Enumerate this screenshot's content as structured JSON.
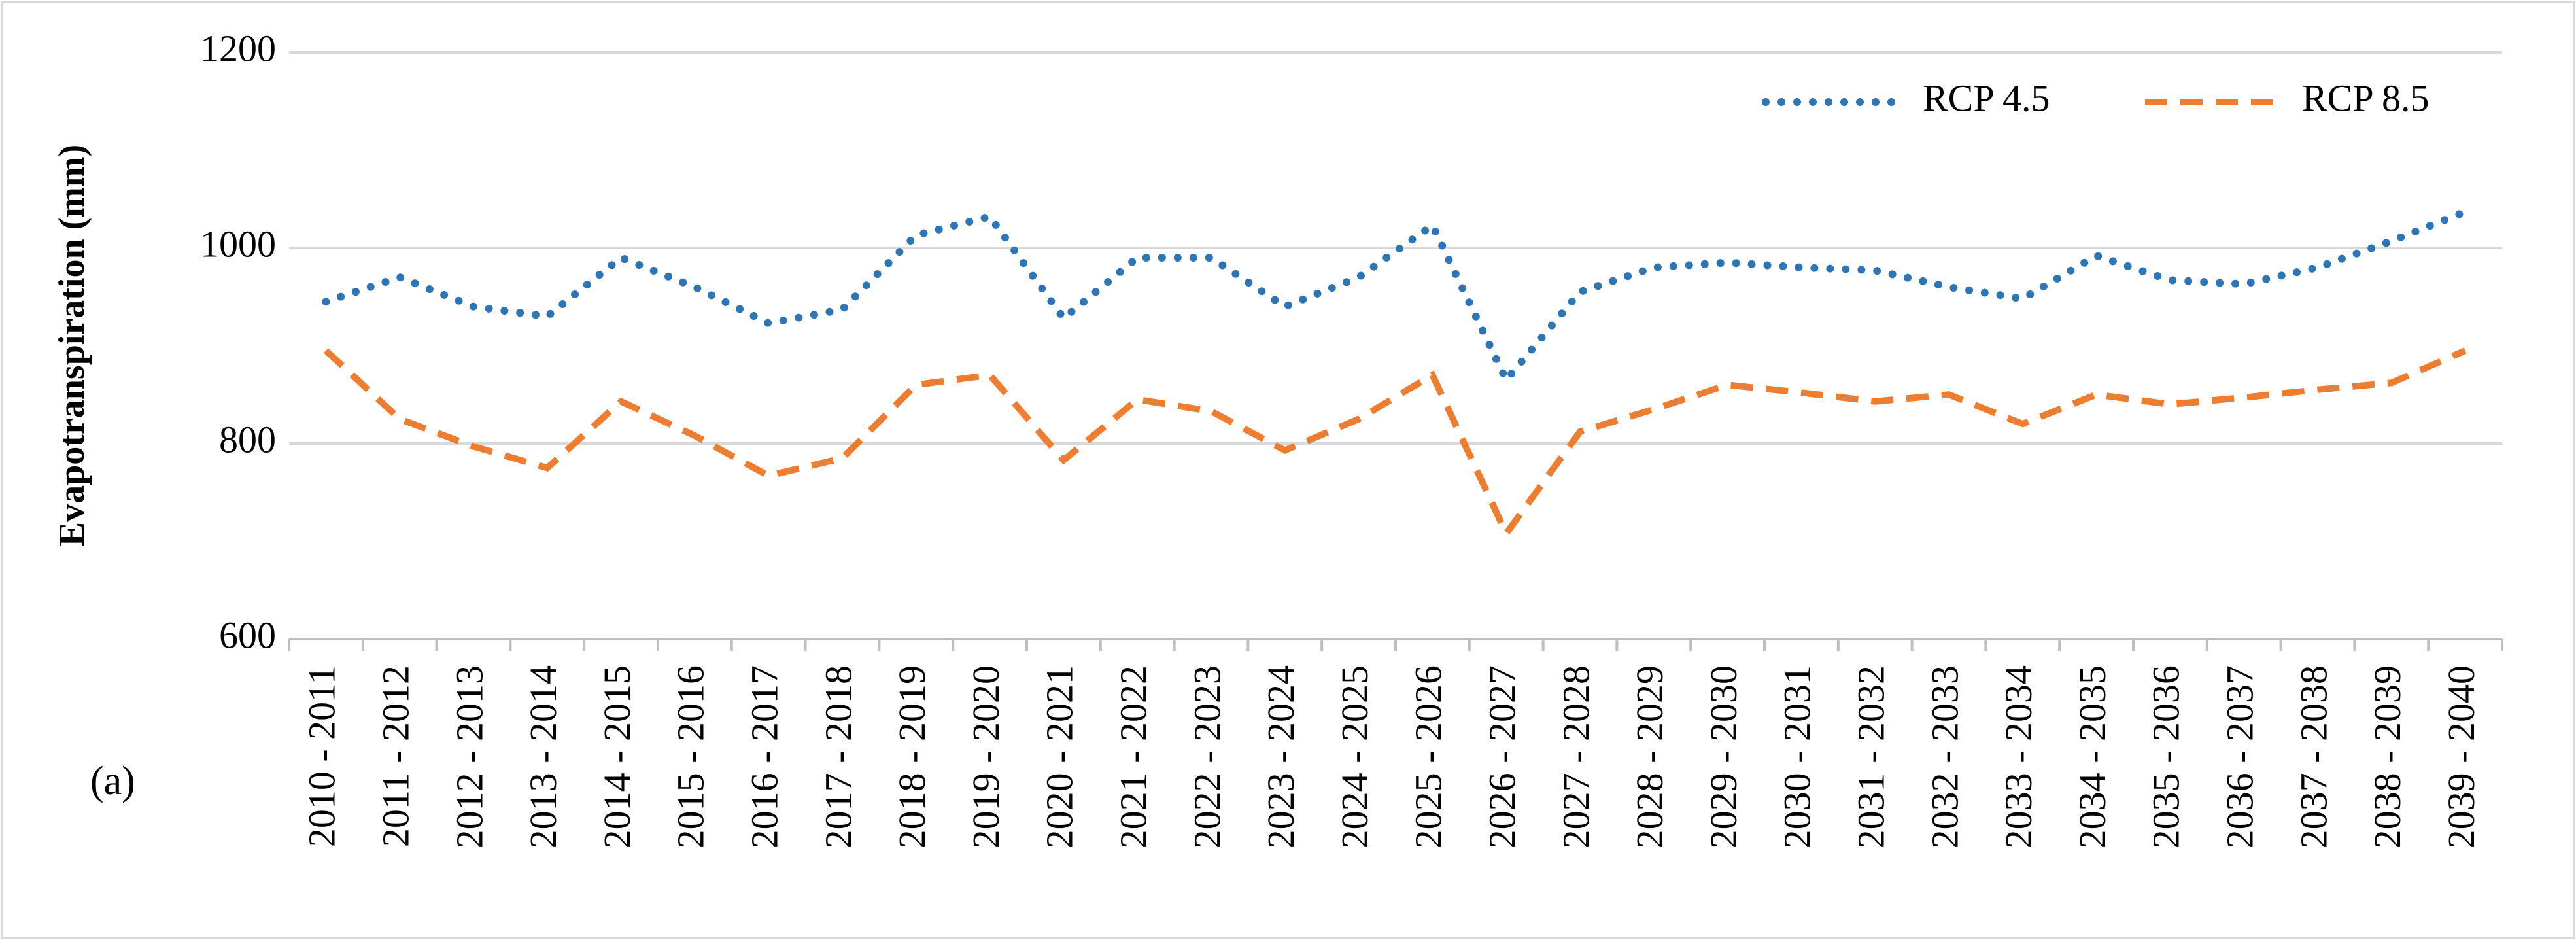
{
  "chart_data": {
    "type": "line",
    "y_label": "Evapotranspiration (mm)",
    "annotation": "(a)",
    "categories": [
      "2010 - 2011",
      "2011 - 2012",
      "2012 - 2013",
      "2013 - 2014",
      "2014 - 2015",
      "2015 - 2016",
      "2016 - 2017",
      "2017 - 2018",
      "2018 - 2019",
      "2019 - 2020",
      "2020 - 2021",
      "2021 - 2022",
      "2022 - 2023",
      "2023 - 2024",
      "2024 - 2025",
      "2025 - 2026",
      "2026 - 2027",
      "2027 - 2028",
      "2028 - 2029",
      "2029 - 2030",
      "2030 - 2031",
      "2031 - 2032",
      "2032 - 2033",
      "2033 - 2034",
      "2034 - 2035",
      "2035 - 2036",
      "2036 - 2037",
      "2037 - 2038",
      "2038 - 2039",
      "2039 - 2040"
    ],
    "series": [
      {
        "name": "RCP 4.5",
        "color": "#2e75b6",
        "style": "dotted",
        "values": [
          945,
          970,
          940,
          930,
          990,
          960,
          923,
          937,
          1013,
          1032,
          928,
          990,
          990,
          940,
          970,
          1023,
          865,
          955,
          980,
          985,
          980,
          977,
          960,
          948,
          992,
          967,
          963,
          980,
          1007,
          1037
        ]
      },
      {
        "name": "RCP 8.5",
        "color": "#ed7d31",
        "style": "dashed",
        "values": [
          895,
          825,
          797,
          775,
          843,
          808,
          767,
          785,
          860,
          870,
          783,
          845,
          833,
          793,
          825,
          870,
          708,
          812,
          835,
          860,
          852,
          843,
          850,
          820,
          850,
          840,
          847,
          855,
          862,
          895
        ]
      }
    ],
    "ylim": [
      600,
      1200
    ],
    "yticks": [
      600,
      800,
      1000,
      1200
    ],
    "grid": true,
    "legend": "upper right"
  }
}
